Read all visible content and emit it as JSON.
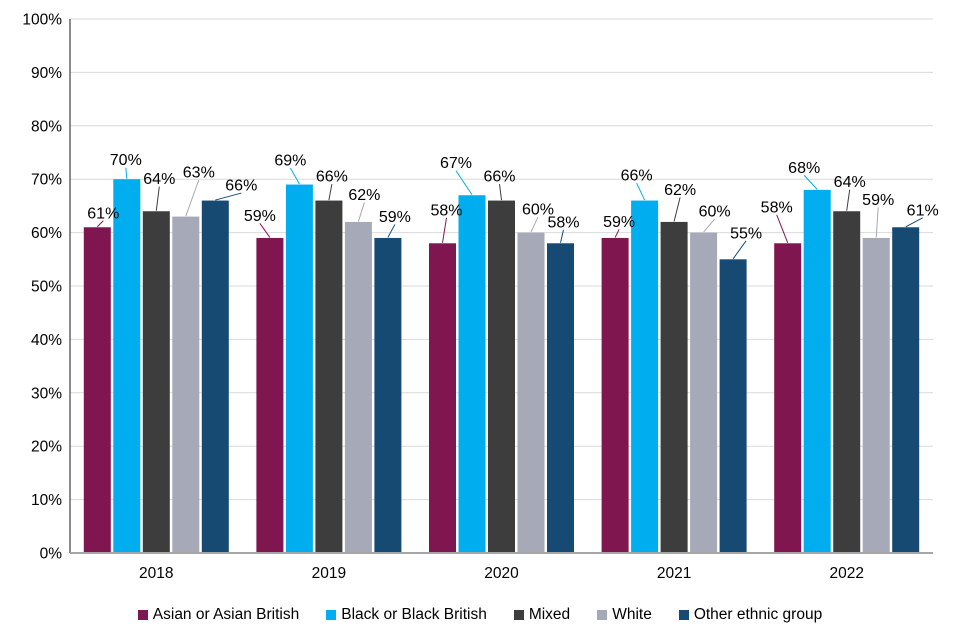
{
  "chart_data": {
    "type": "bar",
    "title": "",
    "categories": [
      "2018",
      "2019",
      "2020",
      "2021",
      "2022"
    ],
    "series": [
      {
        "name": "Asian or Asian British",
        "color": "#801650",
        "values": [
          61,
          59,
          58,
          59,
          58
        ],
        "labels": [
          "61%",
          "59%",
          "58%",
          "59%",
          "58%"
        ]
      },
      {
        "name": "Black or Black British",
        "color": "#00AEEF",
        "values": [
          70,
          69,
          67,
          66,
          68
        ],
        "labels": [
          "70%",
          "69%",
          "67%",
          "66%",
          "68%"
        ]
      },
      {
        "name": "Mixed",
        "color": "#3D3D3D",
        "values": [
          64,
          66,
          66,
          62,
          64
        ],
        "labels": [
          "64%",
          "66%",
          "66%",
          "62%",
          "64%"
        ]
      },
      {
        "name": "White",
        "color": "#A6A9B8",
        "values": [
          63,
          62,
          60,
          60,
          59
        ],
        "labels": [
          "63%",
          "62%",
          "60%",
          "60%",
          "59%"
        ]
      },
      {
        "name": "Other ethnic group",
        "color": "#164A73",
        "values": [
          66,
          59,
          58,
          55,
          61
        ],
        "labels": [
          "66%",
          "59%",
          "58%",
          "55%",
          "61%"
        ]
      }
    ],
    "y_axis": {
      "min": 0,
      "max": 100,
      "step": 10,
      "ticks": [
        "0%",
        "10%",
        "20%",
        "30%",
        "40%",
        "50%",
        "60%",
        "70%",
        "80%",
        "90%",
        "100%"
      ]
    },
    "value_suffix": "%",
    "grid": true,
    "legend_position": "bottom",
    "colors": {
      "gridline": "#D9D9D9",
      "y_axis_line": "#404040",
      "x_axis_line": "#A6A6A6",
      "text": "#000000"
    }
  }
}
